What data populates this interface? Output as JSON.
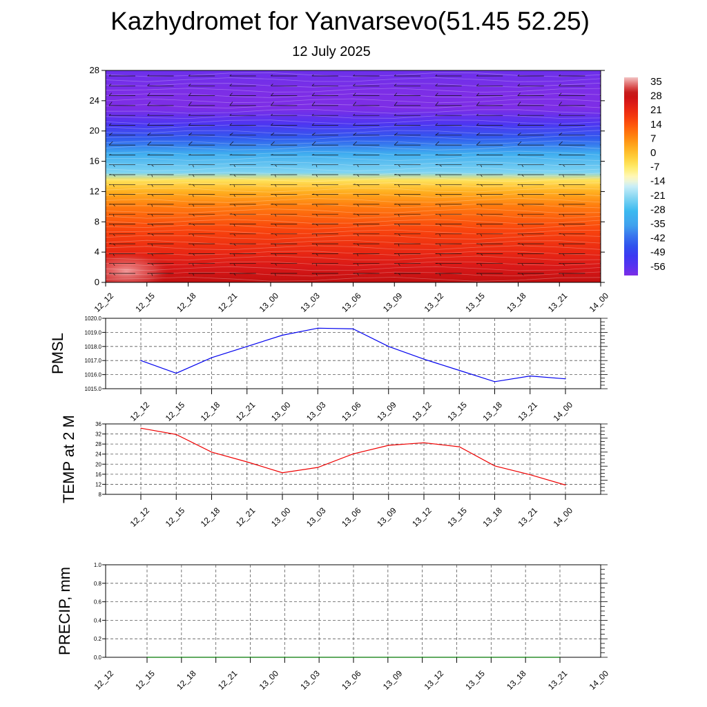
{
  "title": "Kazhydromet for Yanvarsevo(51.45 52.25)",
  "subtitle": "12 July 2025",
  "time_labels": [
    "12_12",
    "12_15",
    "12_18",
    "12_21",
    "13_00",
    "13_03",
    "13_06",
    "13_09",
    "13_12",
    "13_15",
    "13_18",
    "13_21",
    "14_00"
  ],
  "chart_data": [
    {
      "type": "heatmap",
      "name": "temperature-profile",
      "x": [
        "12_12",
        "12_15",
        "12_18",
        "12_21",
        "13_00",
        "13_03",
        "13_06",
        "13_09",
        "13_12",
        "13_15",
        "13_18",
        "13_21",
        "14_00"
      ],
      "ylim": [
        0,
        28
      ],
      "yticks": [
        0,
        4,
        8,
        12,
        16,
        20,
        24,
        28
      ],
      "colorbar_labels": [
        "35",
        "28",
        "21",
        "14",
        "7",
        "0",
        "-7",
        "-14",
        "-21",
        "-28",
        "-35",
        "-42",
        "-49",
        "-56"
      ],
      "colorbar_range": [
        -60,
        38
      ],
      "profile": [
        {
          "y": 0,
          "t": 30
        },
        {
          "y": 2,
          "t": 26
        },
        {
          "y": 4,
          "t": 22
        },
        {
          "y": 7,
          "t": 17
        },
        {
          "y": 10,
          "t": 10
        },
        {
          "y": 12,
          "t": 3
        },
        {
          "y": 13.5,
          "t": -5
        },
        {
          "y": 14.5,
          "t": -22
        },
        {
          "y": 17,
          "t": -32
        },
        {
          "y": 19,
          "t": -44
        },
        {
          "y": 21,
          "t": -54
        },
        {
          "y": 23,
          "t": -60
        },
        {
          "y": 25,
          "t": -62
        },
        {
          "y": 28,
          "t": -58
        }
      ],
      "wind_barbs": "shown"
    },
    {
      "type": "line",
      "ylabel": "PMSL",
      "x": [
        "12_12",
        "12_15",
        "12_18",
        "12_21",
        "13_00",
        "13_03",
        "13_06",
        "13_09",
        "13_12",
        "13_15",
        "13_18",
        "13_21",
        "14_00"
      ],
      "values": [
        1017.0,
        1016.1,
        1017.2,
        1018.0,
        1018.8,
        1019.3,
        1019.25,
        1018.0,
        1017.1,
        1016.3,
        1015.5,
        1015.9,
        1015.7
      ],
      "ylim": [
        1015.0,
        1020.0
      ],
      "yticks": [
        "1015.0",
        "1016.0",
        "1017.0",
        "1018.0",
        "1019.0",
        "1020.0"
      ],
      "color": "#0000ee",
      "grid": true
    },
    {
      "type": "line",
      "ylabel": "TEMP at 2 M",
      "x": [
        "12_12",
        "12_15",
        "12_18",
        "12_21",
        "13_00",
        "13_03",
        "13_06",
        "13_09",
        "13_12",
        "13_15",
        "13_18",
        "13_21",
        "14_00"
      ],
      "values": [
        34.3,
        31.8,
        24.8,
        20.9,
        16.6,
        18.7,
        24.1,
        27.5,
        28.5,
        26.9,
        19.3,
        15.8,
        11.7
      ],
      "ylim": [
        8,
        36
      ],
      "yticks": [
        "8",
        "12",
        "16",
        "20",
        "24",
        "28",
        "32",
        "36"
      ],
      "color": "#ee0000",
      "grid": true
    },
    {
      "type": "line",
      "ylabel": "PRECIP, mm",
      "x": [
        "12_12",
        "12_15",
        "12_18",
        "12_21",
        "13_00",
        "13_03",
        "13_06",
        "13_09",
        "13_12",
        "13_15",
        "13_18",
        "13_21",
        "14_00"
      ],
      "values": [
        0,
        0,
        0,
        0,
        0,
        0,
        0,
        0,
        0,
        0,
        0,
        0,
        0
      ],
      "ylim": [
        0,
        1.0
      ],
      "yticks": [
        "0.0",
        "0.2",
        "0.4",
        "0.6",
        "0.8",
        "1.0"
      ],
      "color": "#007700",
      "grid": true
    }
  ]
}
